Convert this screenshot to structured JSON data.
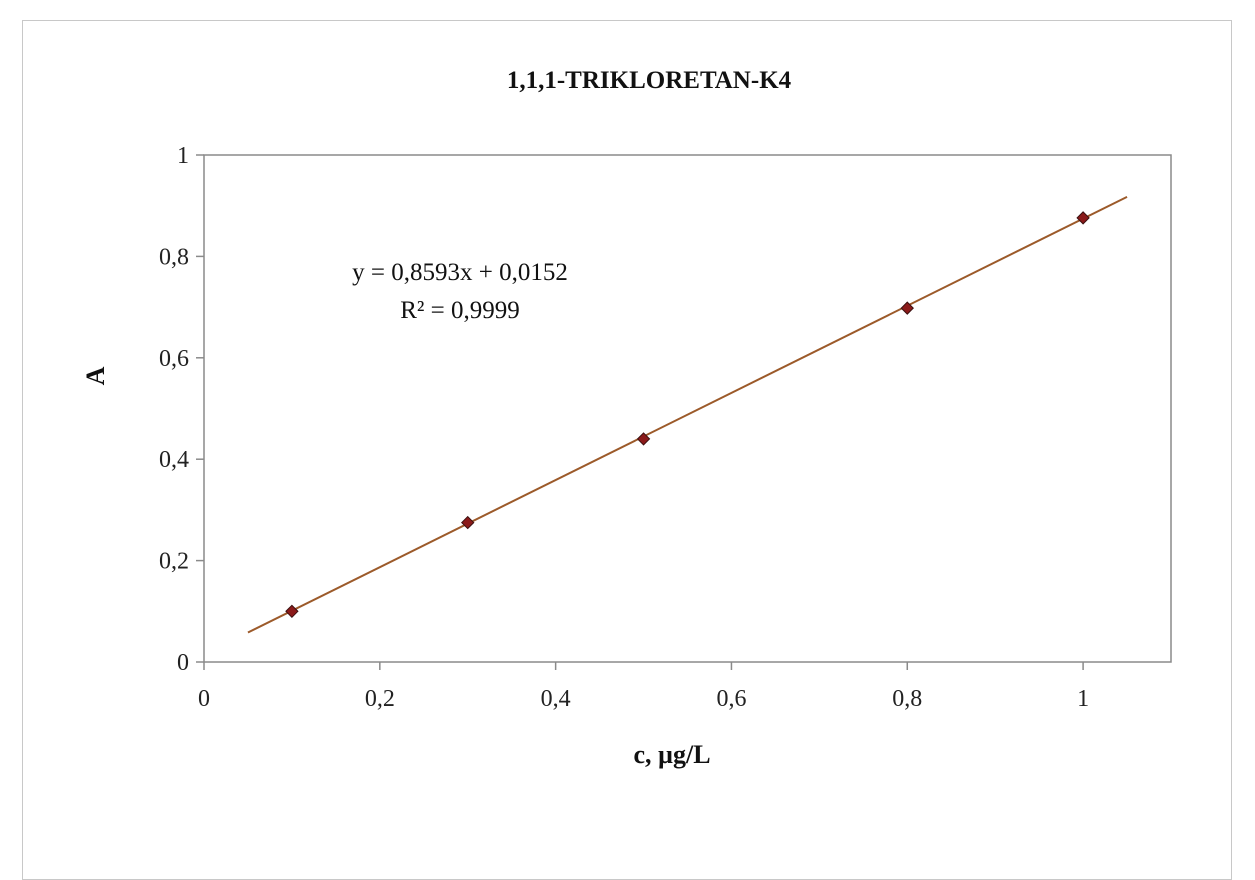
{
  "chart_data": {
    "type": "scatter",
    "title": "1,1,1-TRIKLORETAN-K4",
    "xlabel": "c, µg/L",
    "ylabel": "A",
    "xlim": [
      0,
      1.1
    ],
    "ylim": [
      0,
      1
    ],
    "x_ticks": [
      "0",
      "0,2",
      "0,4",
      "0,6",
      "0,8",
      "1"
    ],
    "y_ticks": [
      "0",
      "0,2",
      "0,4",
      "0,6",
      "0,8",
      "1"
    ],
    "grid": false,
    "series": [
      {
        "x": [
          0.1,
          0.3,
          0.5,
          0.8,
          1.0
        ],
        "y": [
          0.1,
          0.275,
          0.44,
          0.698,
          0.876
        ]
      }
    ],
    "trendline": {
      "slope": 0.8593,
      "intercept": 0.0152,
      "x_range": [
        0.05,
        1.05
      ],
      "equation": "y = 0,8593x + 0,0152",
      "r_squared": "R² = 0,9999"
    },
    "colors": {
      "marker": "#8b1a1a",
      "marker_edge": "#3a1010",
      "trendline": "#9c5a2a",
      "axis": "#8a8a8a"
    }
  }
}
